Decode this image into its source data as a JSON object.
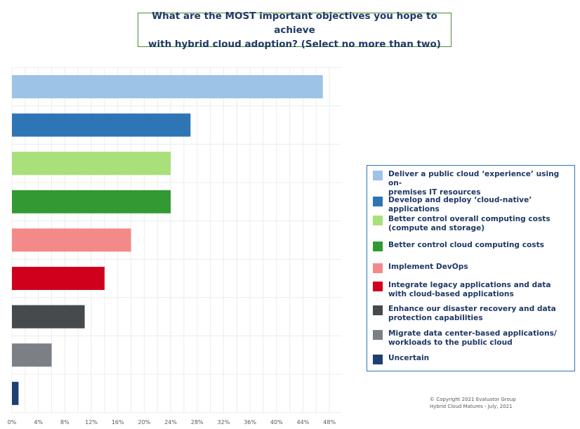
{
  "chart_data": {
    "type": "bar",
    "orientation": "horizontal",
    "title": "What are the MOST important objectives you hope to achieve\nwith hybrid cloud adoption? (Select no more than two)",
    "categories": [
      "Deliver a public cloud ‘experience’ using on-\npremises IT resources",
      "Develop and deploy ‘cloud-native’ applications",
      "Better control overall computing costs\n(compute and storage)",
      "Better control cloud computing costs",
      "Implement DevOps",
      "Integrate legacy applications and data\nwith cloud-based applications",
      "Enhance our disaster recovery and data\nprotection capabilities",
      "Migrate data center-based applications/\nworkloads to the public cloud",
      "Uncertain"
    ],
    "values": [
      47,
      27,
      24,
      24,
      18,
      14,
      11,
      6,
      1
    ],
    "colors": [
      "#9dc3e6",
      "#2e75b6",
      "#a9e07a",
      "#339933",
      "#f4898a",
      "#d0001c",
      "#464a4e",
      "#7b7f86",
      "#1f3f73"
    ],
    "xlim": [
      0,
      50
    ],
    "x_ticks": [
      "0%",
      "4%",
      "8%",
      "12%",
      "16%",
      "20%",
      "24%",
      "28%",
      "32%",
      "36%",
      "40%",
      "44%",
      "48%"
    ],
    "grid": true,
    "legend_position": "right"
  },
  "copyright": {
    "line1": "© Copyright 2021 Evaluator Group",
    "line2": "Hybrid Cloud Matures - July, 2021"
  }
}
